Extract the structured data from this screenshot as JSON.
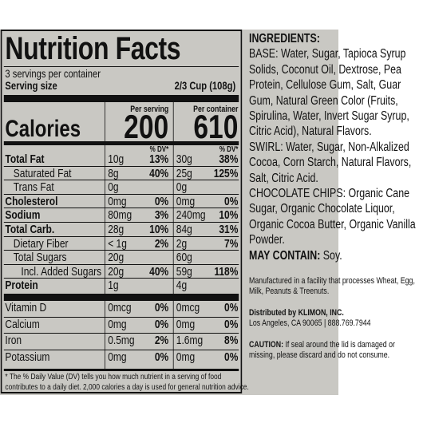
{
  "facts": {
    "title": "Nutrition Facts",
    "servings": "3 servings per container",
    "serving_size_label": "Serving size",
    "serving_size_value": "2/3 Cup (108g)",
    "per_serving": "Per serving",
    "per_container": "Per container",
    "calories_label": "Calories",
    "calories_serving": "200",
    "calories_container": "610",
    "dv_header": "% DV*",
    "nutrients": [
      {
        "name": "Total Fat",
        "v1": "10g",
        "p1": "13%",
        "v2": "30g",
        "p2": "38%"
      },
      {
        "name": "Saturated Fat",
        "v1": "8g",
        "p1": "40%",
        "v2": "25g",
        "p2": "125%"
      },
      {
        "name": "Trans Fat",
        "v1": "0g",
        "p1": "",
        "v2": "0g",
        "p2": ""
      },
      {
        "name": "Cholesterol",
        "v1": "0mg",
        "p1": "0%",
        "v2": "0mg",
        "p2": "0%"
      },
      {
        "name": "Sodium",
        "v1": "80mg",
        "p1": "3%",
        "v2": "240mg",
        "p2": "10%"
      },
      {
        "name": "Total Carb.",
        "v1": "28g",
        "p1": "10%",
        "v2": "84g",
        "p2": "31%"
      },
      {
        "name": "Dietary Fiber",
        "v1": "< 1g",
        "p1": "2%",
        "v2": "2g",
        "p2": "7%"
      },
      {
        "name": "Total Sugars",
        "v1": "20g",
        "p1": "",
        "v2": "60g",
        "p2": ""
      },
      {
        "name": "Incl. Added Sugars",
        "v1": "20g",
        "p1": "40%",
        "v2": "59g",
        "p2": "118%"
      },
      {
        "name": "Protein",
        "v1": "1g",
        "p1": "",
        "v2": "4g",
        "p2": ""
      }
    ],
    "vitamins": [
      {
        "name": "Vitamin D",
        "v1": "0mcg",
        "p1": "0%",
        "v2": "0mcg",
        "p2": "0%"
      },
      {
        "name": "Calcium",
        "v1": "0mg",
        "p1": "0%",
        "v2": "0mg",
        "p2": "0%"
      },
      {
        "name": "Iron",
        "v1": "0.5mg",
        "p1": "2%",
        "v2": "1.6mg",
        "p2": "8%"
      },
      {
        "name": "Potassium",
        "v1": "0mg",
        "p1": "0%",
        "v2": "0mg",
        "p2": "0%"
      }
    ],
    "footnote_1": "* The % Daily Value (DV) tells you how much nutrient in a serving of food",
    "footnote_2": "contributes to a daily diet. 2,000 calories a day is used for general nutrition advice."
  },
  "ingredients": {
    "heading": "INGREDIENTS:",
    "base": "BASE: Water, Sugar, Tapioca Syrup Solids, Coconut Oil, Dextrose, Pea Protein, Cellulose Gum, Salt, Guar Gum, Natural Green Color (Fruits, Spirulina, Water, Invert Sugar Syrup, Citric Acid), Natural Flavors.",
    "swirl": "SWIRL: Water, Sugar, Non-Alkalized Cocoa, Corn Starch, Natural Flavors, Salt, Citric Acid.",
    "chips": "CHOCOLATE CHIPS: Organic Cane Sugar, Organic Chocolate Liquor, Organic Cocoa Butter, Organic Vanilla Powder.",
    "may_contain_label": "MAY CONTAIN:",
    "may_contain_value": "Soy.",
    "facility": "Manufactured in a facility that processes Wheat, Egg, Milk, Peanuts & Treenuts.",
    "distributed_label": "Distributed by KLIMON, INC.",
    "address": "Los Angeles, CA 90065 | 888.769.7944",
    "caution_label": "CAUTION:",
    "caution_text": "If seal around the lid is damaged or missing, please discard and do not consume."
  }
}
